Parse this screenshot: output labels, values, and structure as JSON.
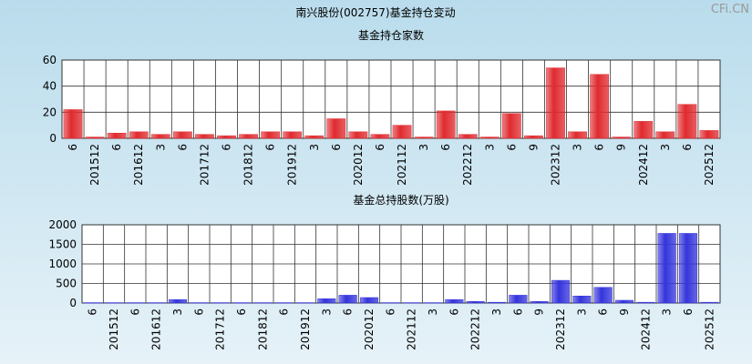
{
  "title": "南兴股份(002757)基金持仓变动",
  "watermark": "CFi.CN",
  "chart_data": [
    {
      "type": "bar",
      "title": "基金持仓家数",
      "color": "#e02a2e",
      "grid": true,
      "categories": [
        "6",
        "201512",
        "6",
        "201612",
        "3",
        "6",
        "201712",
        "6",
        "201812",
        "6",
        "201912",
        "3",
        "6",
        "202012",
        "6",
        "202112",
        "3",
        "6",
        "202212",
        "3",
        "6",
        "9",
        "202312",
        "3",
        "6",
        "9",
        "202412",
        "3",
        "6",
        "202512"
      ],
      "values": [
        22,
        1,
        4,
        5,
        3,
        5,
        3,
        2,
        3,
        5,
        5,
        2,
        15,
        5,
        3,
        10,
        1,
        21,
        3,
        1,
        19,
        2,
        54,
        5,
        49,
        1,
        13,
        5,
        26,
        6
      ],
      "ylim": [
        0,
        60
      ],
      "yticks": [
        0,
        20,
        40,
        60
      ]
    },
    {
      "type": "bar",
      "title": "基金总持股数(万股)",
      "color": "#3434dc",
      "grid": true,
      "categories": [
        "6",
        "201512",
        "6",
        "201612",
        "3",
        "6",
        "201712",
        "6",
        "201812",
        "6",
        "201912",
        "3",
        "6",
        "202012",
        "6",
        "202112",
        "3",
        "6",
        "202212",
        "3",
        "6",
        "9",
        "202312",
        "3",
        "6",
        "9",
        "202412",
        "3",
        "6",
        "202512"
      ],
      "values": [
        10,
        10,
        10,
        10,
        90,
        10,
        10,
        10,
        10,
        10,
        10,
        110,
        200,
        140,
        10,
        10,
        10,
        90,
        40,
        20,
        200,
        40,
        580,
        180,
        400,
        70,
        20,
        1780,
        1780,
        20
      ],
      "ylim": [
        0,
        2000
      ],
      "yticks": [
        0,
        500,
        1000,
        1500,
        2000
      ]
    }
  ]
}
